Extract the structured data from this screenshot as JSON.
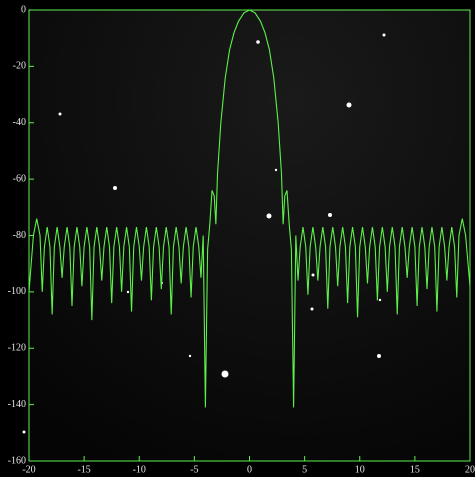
{
  "chart_data": {
    "type": "line",
    "x": [
      -20,
      -19.6,
      -19.3,
      -19.0,
      -18.8,
      -18.6,
      -18.35,
      -18.1,
      -17.9,
      -17.7,
      -17.45,
      -17.2,
      -17.0,
      -16.8,
      -16.55,
      -16.3,
      -16.1,
      -15.9,
      -15.65,
      -15.4,
      -15.2,
      -15.0,
      -14.75,
      -14.5,
      -14.3,
      -14.1,
      -13.85,
      -13.6,
      -13.4,
      -13.2,
      -12.95,
      -12.7,
      -12.5,
      -12.3,
      -12.05,
      -11.8,
      -11.6,
      -11.4,
      -11.15,
      -10.9,
      -10.7,
      -10.5,
      -10.25,
      -10.0,
      -9.8,
      -9.6,
      -9.35,
      -9.1,
      -8.9,
      -8.7,
      -8.45,
      -8.2,
      -8.0,
      -7.8,
      -7.55,
      -7.3,
      -7.1,
      -6.9,
      -6.65,
      -6.4,
      -6.2,
      -6.0,
      -5.75,
      -5.5,
      -5.3,
      -5.1,
      -4.85,
      -4.6,
      -4.4,
      -4.2,
      -4.0,
      -3.8,
      -3.6,
      -3.4,
      -3.2,
      -3.05,
      -2.9,
      -2.6,
      -2.2,
      -1.8,
      -1.4,
      -1.0,
      -0.5,
      0,
      0.5,
      1.0,
      1.4,
      1.8,
      2.2,
      2.6,
      2.9,
      3.05,
      3.2,
      3.4,
      3.6,
      3.8,
      4.0,
      4.2,
      4.4,
      4.6,
      4.85,
      5.1,
      5.3,
      5.5,
      5.75,
      6.0,
      6.2,
      6.4,
      6.65,
      6.9,
      7.1,
      7.3,
      7.55,
      7.8,
      8.0,
      8.2,
      8.45,
      8.7,
      8.9,
      9.1,
      9.35,
      9.6,
      9.8,
      10.0,
      10.25,
      10.5,
      10.7,
      10.9,
      11.15,
      11.4,
      11.6,
      11.8,
      12.05,
      12.3,
      12.5,
      12.7,
      12.95,
      13.2,
      13.4,
      13.6,
      13.85,
      14.1,
      14.3,
      14.5,
      14.75,
      15.0,
      15.2,
      15.4,
      15.65,
      15.9,
      16.1,
      16.3,
      16.55,
      16.8,
      17.0,
      17.2,
      17.45,
      17.7,
      17.9,
      18.1,
      18.35,
      18.6,
      18.8,
      19.0,
      19.3,
      19.6,
      20
    ],
    "series": [
      {
        "color": "#5ef04a",
        "values": [
          -100,
          -80,
          -74,
          -80,
          -100,
          -84,
          -77,
          -84,
          -108,
          -84,
          -77,
          -84,
          -95,
          -84,
          -77,
          -84,
          -105,
          -84,
          -77,
          -84,
          -98,
          -84,
          -77,
          -84,
          -110,
          -84,
          -77,
          -84,
          -96,
          -84,
          -77,
          -84,
          -104,
          -84,
          -77,
          -84,
          -100,
          -84,
          -77,
          -84,
          -107,
          -84,
          -77,
          -84,
          -96,
          -84,
          -77,
          -84,
          -103,
          -84,
          -77,
          -84,
          -99,
          -84,
          -77,
          -84,
          -108,
          -84,
          -77,
          -84,
          -97,
          -84,
          -77,
          -84,
          -102,
          -84,
          -77,
          -84,
          -95,
          -80,
          -141,
          -85,
          -76,
          -64,
          -66,
          -76,
          -58,
          -40,
          -24,
          -14,
          -8,
          -4,
          -1,
          0,
          -1,
          -4,
          -8,
          -14,
          -24,
          -40,
          -58,
          -76,
          -66,
          -64,
          -76,
          -85,
          -141,
          -80,
          -96,
          -84,
          -77,
          -84,
          -101,
          -84,
          -77,
          -84,
          -96,
          -84,
          -77,
          -84,
          -106,
          -84,
          -77,
          -84,
          -98,
          -84,
          -77,
          -84,
          -104,
          -84,
          -77,
          -84,
          -109,
          -84,
          -77,
          -84,
          -97,
          -84,
          -77,
          -84,
          -103,
          -84,
          -77,
          -84,
          -100,
          -84,
          -77,
          -84,
          -108,
          -84,
          -77,
          -84,
          -95,
          -84,
          -77,
          -84,
          -105,
          -84,
          -77,
          -84,
          -99,
          -84,
          -77,
          -84,
          -107,
          -84,
          -77,
          -84,
          -96,
          -84,
          -77,
          -84,
          -102,
          -80,
          -74,
          -80,
          -98
        ]
      }
    ],
    "xlim": [
      -20,
      20
    ],
    "ylim": [
      -160,
      0
    ],
    "xticks": [
      -20,
      -15,
      -10,
      -5,
      0,
      5,
      10,
      15,
      20
    ],
    "yticks": [
      0,
      -20,
      -40,
      -60,
      -80,
      -100,
      -120,
      -140,
      -160
    ]
  }
}
